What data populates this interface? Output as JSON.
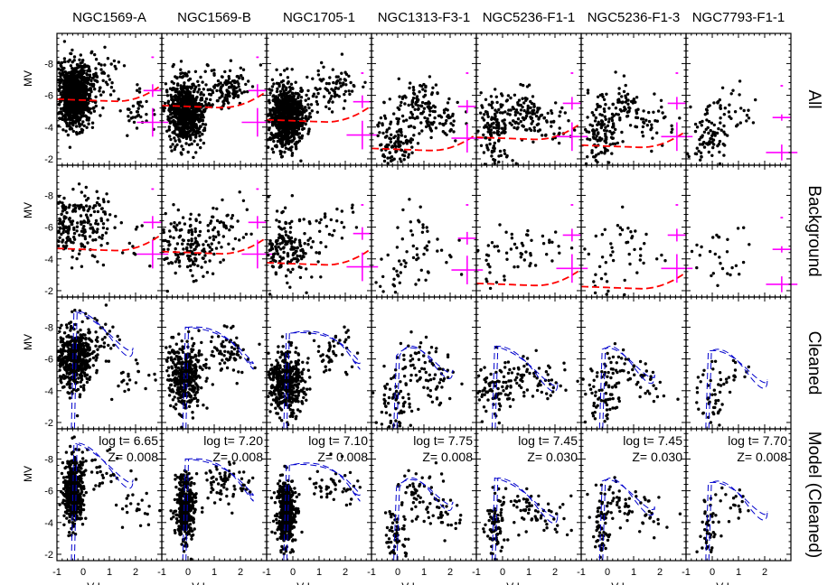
{
  "chart_data": {
    "type": "scatter",
    "layout": "4x7 grid",
    "columns": [
      "NGC1569-A",
      "NGC1569-B",
      "NGC1705-1",
      "NGC1313-F3-1",
      "NGC5236-F1-1",
      "NGC5236-F1-3",
      "NGC7793-F1-1"
    ],
    "rows": [
      "All",
      "Background",
      "Cleaned",
      "Model (Cleaned)"
    ],
    "xlabel": "V-I",
    "ylabel": "MV",
    "xlim": [
      -1,
      3
    ],
    "ylim": [
      -1.6,
      -9.9
    ],
    "xticks": [
      "-1",
      "0",
      "1",
      "2"
    ],
    "yticks": [
      "-8",
      "-6",
      "-4",
      "-2"
    ],
    "colors": {
      "points": "#000000",
      "errorbars": "#ff00ff",
      "completeness": "#ff0000",
      "isochrone": "#0000cc"
    },
    "annotations": [
      {
        "logt": "log t= 6.65",
        "z": "Z= 0.008"
      },
      {
        "logt": "log t= 7.20",
        "z": "Z= 0.008"
      },
      {
        "logt": "log t= 7.10",
        "z": "Z= 0.008"
      },
      {
        "logt": "log t= 7.75",
        "z": "Z= 0.008"
      },
      {
        "logt": "log t= 7.45",
        "z": "Z= 0.030"
      },
      {
        "logt": "log t= 7.45",
        "z": "Z= 0.030"
      },
      {
        "logt": "log t= 7.70",
        "z": "Z= 0.008"
      }
    ],
    "completeness_mag": {
      "all": [
        -5.7,
        -5.3,
        -4.4,
        -2.6,
        -3.3,
        -2.8,
        null
      ],
      "background": [
        -4.6,
        -4.4,
        -3.7,
        null,
        -2.4,
        -2.2,
        null
      ]
    },
    "errorbars": [
      {
        "mags": [
          -8.4,
          -6.3,
          -4.3
        ],
        "dmag": [
          0.05,
          0.4,
          0.9
        ]
      },
      {
        "mags": [
          -8.4,
          -6.3,
          -4.3
        ],
        "dmag": [
          0.05,
          0.4,
          0.9
        ]
      },
      {
        "mags": [
          -7.4,
          -5.6,
          -3.5
        ],
        "dmag": [
          0.05,
          0.4,
          0.9
        ]
      },
      {
        "mags": [
          -7.4,
          -5.3,
          -3.3
        ],
        "dmag": [
          0.05,
          0.4,
          0.9
        ]
      },
      {
        "mags": [
          -7.4,
          -5.5,
          -3.4
        ],
        "dmag": [
          0.05,
          0.4,
          0.9
        ]
      },
      {
        "mags": [
          -7.4,
          -5.5,
          -3.4
        ],
        "dmag": [
          0.05,
          0.4,
          0.9
        ]
      },
      {
        "mags": [
          -6.6,
          -4.6,
          -2.4
        ],
        "dmag": [
          0.05,
          0.2,
          0.5
        ]
      }
    ],
    "clusters": [
      {
        "main_seq": [
          -0.35,
          -6.0,
          900
        ],
        "extra": [
          [
            0.6,
            -7.2,
            60
          ],
          [
            2.0,
            -5.0,
            40
          ]
        ]
      },
      {
        "main_seq": [
          -0.1,
          -5.0,
          700
        ],
        "extra": [
          [
            1.5,
            -6.4,
            120
          ]
        ]
      },
      {
        "main_seq": [
          -0.25,
          -4.6,
          800
        ],
        "extra": [
          [
            1.6,
            -6.4,
            80
          ]
        ]
      },
      {
        "main_seq": [
          -0.05,
          -3.2,
          120
        ],
        "extra": [
          [
            0.8,
            -5.8,
            80
          ],
          [
            1.6,
            -4.5,
            60
          ]
        ]
      },
      {
        "main_seq": [
          -0.3,
          -3.8,
          140
        ],
        "extra": [
          [
            0.8,
            -5.0,
            80
          ],
          [
            1.8,
            -4.4,
            40
          ]
        ]
      },
      {
        "main_seq": [
          -0.2,
          -3.6,
          120
        ],
        "extra": [
          [
            0.5,
            -5.5,
            60
          ],
          [
            1.6,
            -4.4,
            40
          ]
        ]
      },
      {
        "main_seq": [
          -0.15,
          -3.5,
          80
        ],
        "extra": [
          [
            0.8,
            -5.2,
            30
          ]
        ]
      }
    ]
  }
}
